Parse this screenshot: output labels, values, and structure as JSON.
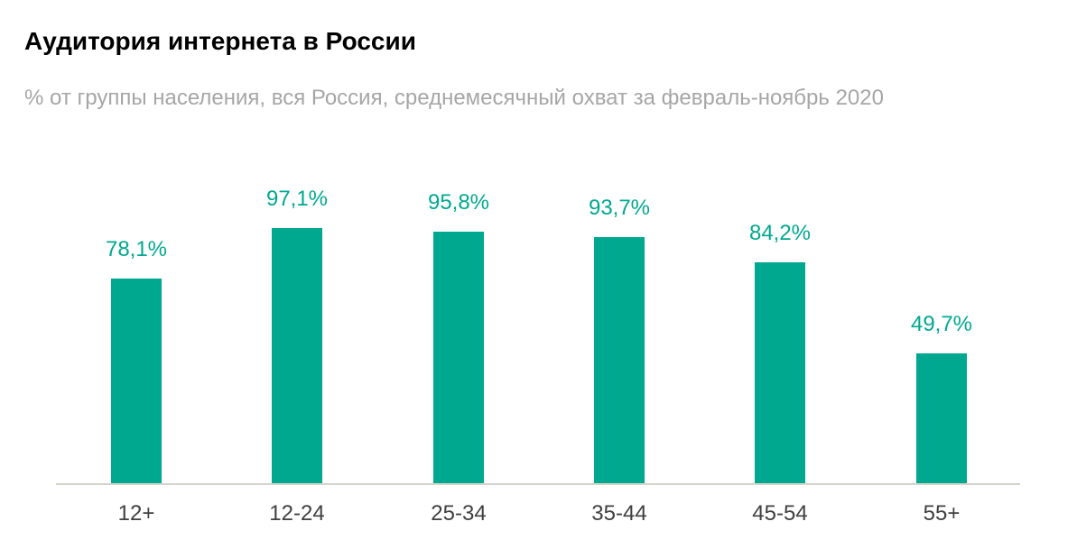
{
  "header": {
    "title": "Аудитория интернета в России",
    "subtitle": "% от группы населения, вся Россия, среднемесячный охват за февраль-ноябрь 2020"
  },
  "colors": {
    "bar": "#00a88f",
    "axis": "#d4d4cc",
    "title": "#000000",
    "subtitle": "#a6a6a6",
    "tick_label": "#404040"
  },
  "labels": [
    "78,1%",
    "97,1%",
    "95,8%",
    "93,7%",
    "84,2%",
    "49,7%"
  ],
  "categories": [
    "12+",
    "12-24",
    "25-34",
    "35-44",
    "45-54",
    "55+"
  ],
  "chart_data": {
    "type": "bar",
    "title": "Аудитория интернета в России",
    "subtitle": "% от группы населения, вся Россия, среднемесячный охват за февраль-ноябрь 2020",
    "categories": [
      "12+",
      "12-24",
      "25-34",
      "35-44",
      "45-54",
      "55+"
    ],
    "values": [
      78.1,
      97.1,
      95.8,
      93.7,
      84.2,
      49.7
    ],
    "data_labels": [
      "78,1%",
      "97,1%",
      "95,8%",
      "93,7%",
      "84,2%",
      "49,7%"
    ],
    "xlabel": "",
    "ylabel": "",
    "ylim": [
      0,
      100
    ],
    "grid": false,
    "legend": null
  }
}
